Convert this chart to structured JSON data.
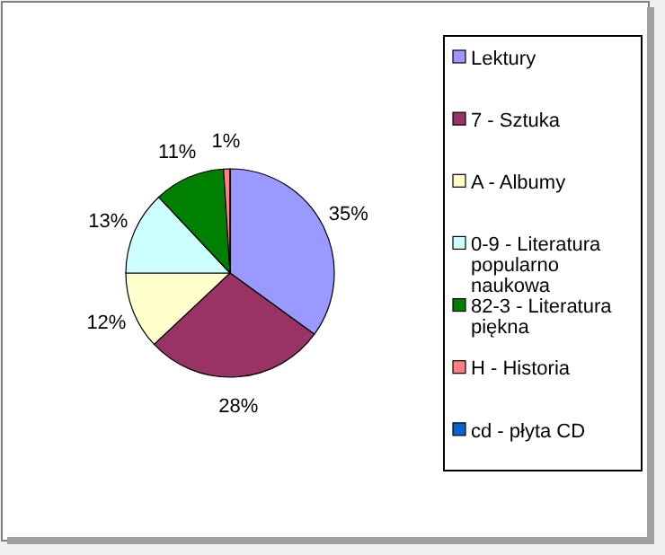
{
  "chart_data": {
    "type": "pie",
    "categories": [
      "Lektury",
      "7 - Sztuka",
      "A - Albumy",
      "0-9 - Literatura popularno naukowa",
      "82-3 - Literatura piękna",
      "H - Historia",
      "cd - płyta CD"
    ],
    "values": [
      35,
      28,
      12,
      13,
      11,
      1,
      0
    ],
    "colors": [
      "#9999ff",
      "#993366",
      "#ffffcc",
      "#ccffff",
      "#008000",
      "#ff8080",
      "#0066cc"
    ],
    "value_labels": [
      "35%",
      "28%",
      "12%",
      "13%",
      "11%",
      "1%",
      null
    ],
    "legend": "right"
  }
}
